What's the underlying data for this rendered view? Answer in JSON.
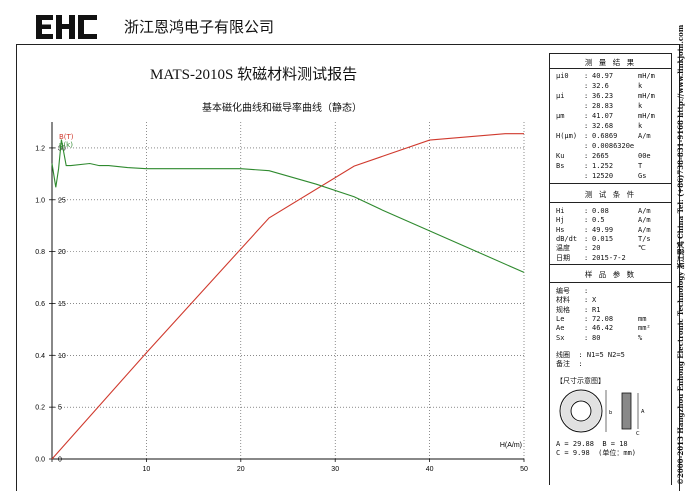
{
  "header": {
    "brand": "EHC",
    "company": "浙江恩鸿电子有限公司"
  },
  "chart_title": "MATS-2010S 软磁材料测试报告",
  "chart_subtitle": "基本磁化曲线和磁导率曲线（静态）",
  "chart_data": {
    "type": "line",
    "xlabel": "H(A/m)",
    "x_ticks": [
      "0",
      "10",
      "20",
      "30",
      "40",
      "50"
    ],
    "xlim": [
      0,
      50
    ],
    "y_left_ticks": [
      "0.0",
      "0.2",
      "0.4",
      "0.6",
      "0.8",
      "1.0",
      "1.2"
    ],
    "ylim_left": [
      0,
      1.3
    ],
    "y_right_ticks": [
      "0",
      "5",
      "10",
      "15",
      "20",
      "25",
      "30"
    ],
    "ylim_right": [
      0,
      32.5
    ],
    "grid": true,
    "legend_position": "top-left",
    "series": [
      {
        "name": "B(T)",
        "axis": "left",
        "color": "#d03a2e",
        "x": [
          0,
          10,
          23,
          32,
          40,
          48,
          50
        ],
        "y": [
          0.0,
          0.41,
          0.93,
          1.13,
          1.23,
          1.255,
          1.255
        ]
      },
      {
        "name": "μ(k)",
        "axis": "right",
        "color": "#2f8a2f",
        "x": [
          0,
          0.4,
          0.7,
          1.0,
          1.5,
          2,
          4,
          5,
          6,
          8,
          10,
          12,
          15,
          18,
          20,
          23,
          28,
          32,
          35,
          40,
          45,
          50
        ],
        "y": [
          28.5,
          26.2,
          28.0,
          30.8,
          28.3,
          28.3,
          28.5,
          28.3,
          28.3,
          28.1,
          28.0,
          28.0,
          28.0,
          28.0,
          28.0,
          27.8,
          26.5,
          25.3,
          24.0,
          22.0,
          20.0,
          18.0
        ]
      }
    ]
  },
  "panel": {
    "results_title": "测 量 结 果",
    "results": [
      {
        "k": "μi0",
        "v": "40.97",
        "u": "mH/m"
      },
      {
        "k": "",
        "v": "32.6",
        "u": "k"
      },
      {
        "k": "μi",
        "v": "36.23",
        "u": "mH/m"
      },
      {
        "k": "",
        "v": "28.83",
        "u": "k"
      },
      {
        "k": "μm",
        "v": "41.07",
        "u": "mH/m"
      },
      {
        "k": "",
        "v": "32.68",
        "u": "k"
      },
      {
        "k": "H(μm)",
        "v": "0.6869",
        "u": "A/m"
      },
      {
        "k": "",
        "v": "0.0086320e",
        "u": ""
      },
      {
        "k": "Ku",
        "v": "2665",
        "u": "00e"
      },
      {
        "k": "Bs",
        "v": "1.252",
        "u": "T"
      },
      {
        "k": "",
        "v": "12520",
        "u": "Gs"
      }
    ],
    "conditions_title": "测 试 条 件",
    "conditions": [
      {
        "k": "Hi",
        "v": "0.08",
        "u": "A/m"
      },
      {
        "k": "Hj",
        "v": "0.5",
        "u": "A/m"
      },
      {
        "k": "Hs",
        "v": "49.99",
        "u": "A/m"
      },
      {
        "k": "dB/dt",
        "v": "0.015",
        "u": "T/s"
      },
      {
        "k": "温度",
        "v": "20",
        "u": "℃"
      },
      {
        "k": "日期",
        "v": "2015-7-2",
        "u": ""
      }
    ],
    "sample_title": "样 品 参 数",
    "sample": [
      {
        "k": "编号",
        "v": "",
        "u": ""
      },
      {
        "k": "材料",
        "v": "X",
        "u": ""
      },
      {
        "k": "规格",
        "v": "R1",
        "u": ""
      },
      {
        "k": "Le",
        "v": "72.08",
        "u": "mm"
      },
      {
        "k": "Ae",
        "v": "46.42",
        "u": "mm²"
      },
      {
        "k": "Sx",
        "v": "80",
        "u": "%"
      }
    ],
    "coil": "线圈  : N1=5 N2=5",
    "note": "备注  :",
    "dim_title": "【尺寸示意图】",
    "dim_labels": {
      "b": "b",
      "a": "A",
      "c": "C",
      "d": "D"
    },
    "dims_line1": "A = 29.88  B = 18",
    "dims_line2": "C = 9.98  (单位：mm)"
  },
  "side_text": "©2000-2013 Hangzhou Enhong Electronic Technology  浙江恩鸿 China  Tel: (+86)738-831-9168  http://www.linkjoin.com"
}
